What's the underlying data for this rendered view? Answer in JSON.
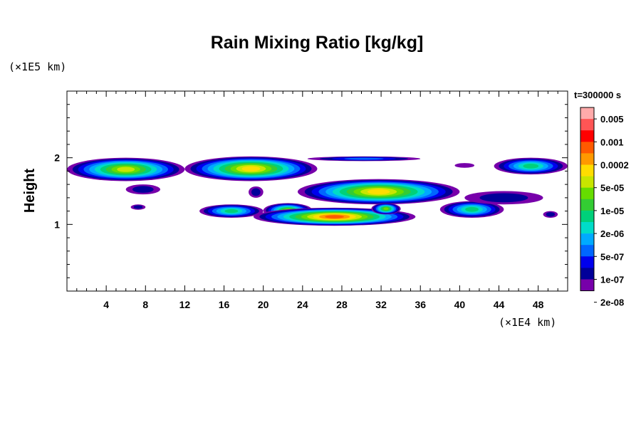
{
  "chart_data": {
    "type": "heatmap",
    "title": "Rain Mixing Ratio [kg/kg]",
    "ylabel": "Height",
    "xlabel": "",
    "x_unit": "(×1E4 km)",
    "y_unit": "(×1E5 km)",
    "time_label": "t=300000 s",
    "xlim": [
      0,
      51
    ],
    "ylim": [
      0,
      3
    ],
    "x_ticks": [
      4,
      8,
      12,
      16,
      20,
      24,
      28,
      32,
      36,
      40,
      44,
      48
    ],
    "y_ticks": [
      1,
      2
    ],
    "colorbar": {
      "labels": [
        "0.005",
        "0.001",
        "0.0002",
        "5e-05",
        "1e-05",
        "2e-06",
        "5e-07",
        "1e-07",
        "2e-08"
      ],
      "colors": [
        "#ffaaaa",
        "#ff5555",
        "#ff0000",
        "#ff5a00",
        "#ff9900",
        "#ffdd00",
        "#c8e600",
        "#66dd00",
        "#33cc33",
        "#00d07a",
        "#00dcc8",
        "#00aaff",
        "#0066ff",
        "#0000ee",
        "#000099",
        "#7700aa"
      ]
    },
    "regions": [
      {
        "x": [
          0,
          12
        ],
        "y": [
          1.65,
          2.0
        ],
        "peak": 0.0001
      },
      {
        "x": [
          12,
          25.5
        ],
        "y": [
          1.65,
          2.02
        ],
        "peak": 0.0002
      },
      {
        "x": [
          24.5,
          36
        ],
        "y": [
          1.95,
          2.02
        ],
        "peak": 1e-06
      },
      {
        "x": [
          23.5,
          40
        ],
        "y": [
          1.3,
          1.68
        ],
        "peak": 0.0002
      },
      {
        "x": [
          20,
          25
        ],
        "y": [
          1.1,
          1.32
        ],
        "peak": 5e-05
      },
      {
        "x": [
          13.5,
          20
        ],
        "y": [
          1.1,
          1.3
        ],
        "peak": 1e-05
      },
      {
        "x": [
          19,
          35.5
        ],
        "y": [
          0.98,
          1.25
        ],
        "peak": 0.001
      },
      {
        "x": [
          31,
          34
        ],
        "y": [
          1.15,
          1.32
        ],
        "peak": 5e-05
      },
      {
        "x": [
          38,
          44.5
        ],
        "y": [
          1.1,
          1.35
        ],
        "peak": 1e-05
      },
      {
        "x": [
          43.5,
          51
        ],
        "y": [
          1.75,
          2.0
        ],
        "peak": 1e-05
      },
      {
        "x": [
          40.5,
          48.5
        ],
        "y": [
          1.3,
          1.5
        ],
        "peak": 1e-07
      },
      {
        "x": [
          6,
          9.5
        ],
        "y": [
          1.45,
          1.6
        ],
        "peak": 1e-07
      },
      {
        "x": [
          6.5,
          8
        ],
        "y": [
          1.22,
          1.3
        ],
        "peak": 1e-07
      },
      {
        "x": [
          18.5,
          20
        ],
        "y": [
          1.4,
          1.57
        ],
        "peak": 1e-07
      },
      {
        "x": [
          39.5,
          41.5
        ],
        "y": [
          1.85,
          1.92
        ],
        "peak": 2e-08
      },
      {
        "x": [
          48.5,
          50
        ],
        "y": [
          1.1,
          1.2
        ],
        "peak": 1e-07
      }
    ]
  }
}
